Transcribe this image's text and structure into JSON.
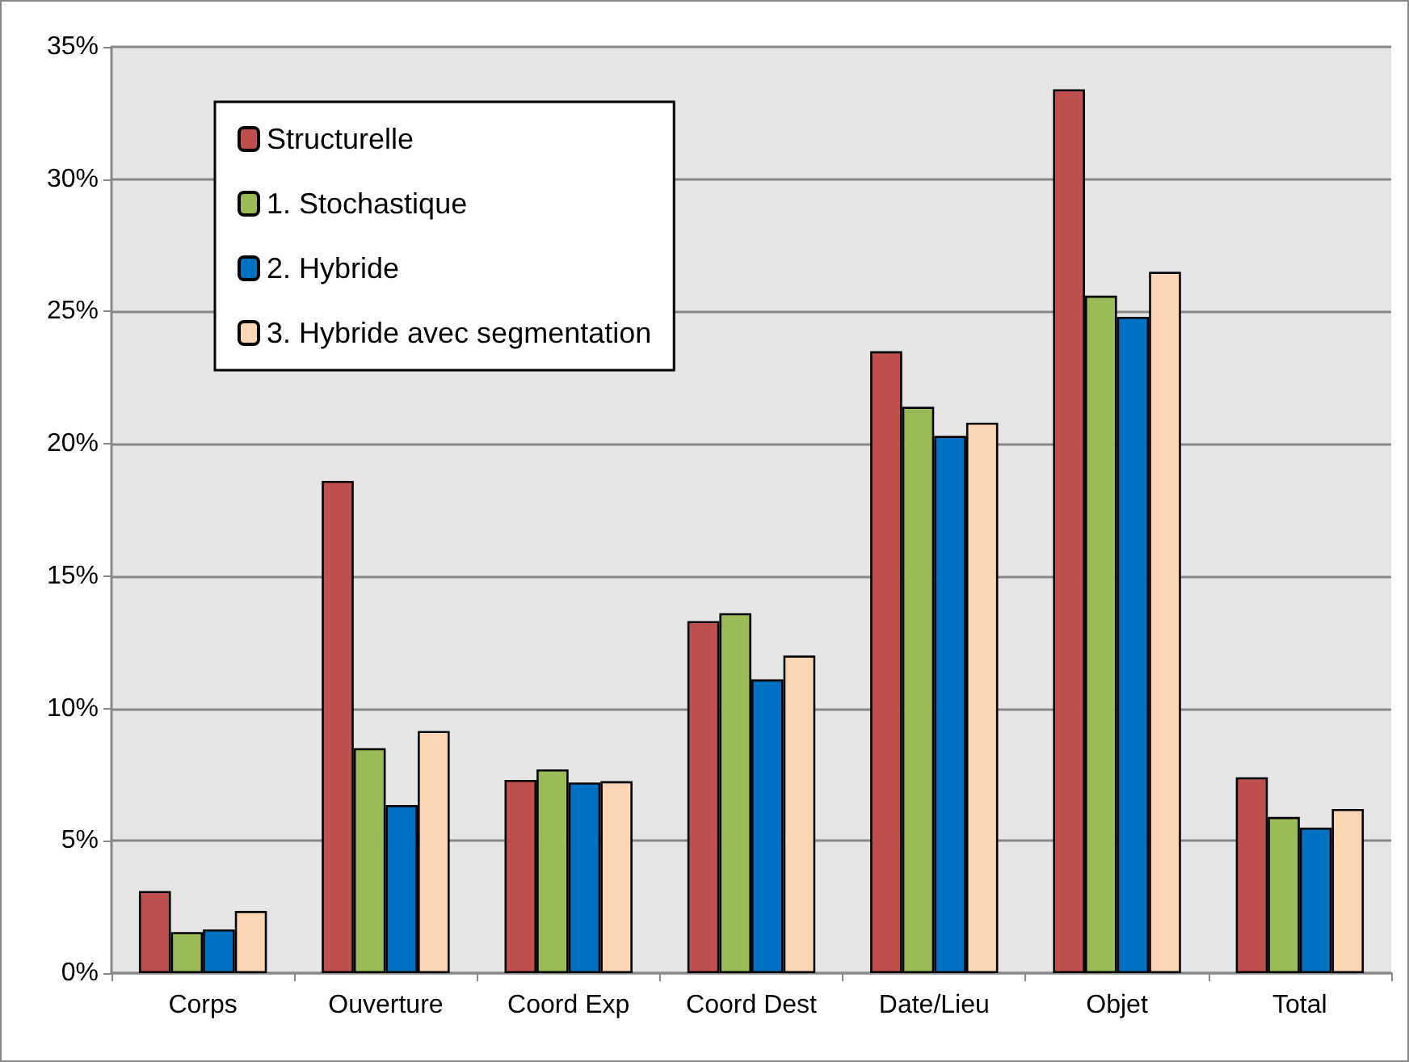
{
  "chart_data": {
    "type": "bar",
    "categories": [
      "Corps",
      "Ouverture",
      "Coord Exp",
      "Coord Dest",
      "Date/Lieu",
      "Objet",
      "Total"
    ],
    "series": [
      {
        "name": "Structurelle",
        "color": "#c0504d",
        "values": [
          3.1,
          18.6,
          7.3,
          13.3,
          23.5,
          33.4,
          7.4
        ]
      },
      {
        "name": "1. Stochastique",
        "color": "#9bbb59",
        "values": [
          1.55,
          8.5,
          7.7,
          13.6,
          21.4,
          25.6,
          5.9
        ]
      },
      {
        "name": "2. Hybride",
        "color": "#0070c0",
        "values": [
          1.65,
          6.35,
          7.2,
          11.1,
          20.3,
          24.8,
          5.5
        ]
      },
      {
        "name": "3. Hybride avec segmentation",
        "color": "#fcd5b4",
        "values": [
          2.35,
          9.15,
          7.25,
          12.0,
          20.8,
          26.5,
          6.2
        ]
      }
    ],
    "ylim": [
      0,
      35
    ],
    "yticks": [
      {
        "value": 0,
        "label": "0%"
      },
      {
        "value": 5,
        "label": "5%"
      },
      {
        "value": 10,
        "label": "10%"
      },
      {
        "value": 15,
        "label": "15%"
      },
      {
        "value": 20,
        "label": "20%"
      },
      {
        "value": 25,
        "label": "25%"
      },
      {
        "value": 30,
        "label": "30%"
      },
      {
        "value": 35,
        "label": "35%"
      }
    ],
    "grid": "y",
    "legend": "top left"
  }
}
